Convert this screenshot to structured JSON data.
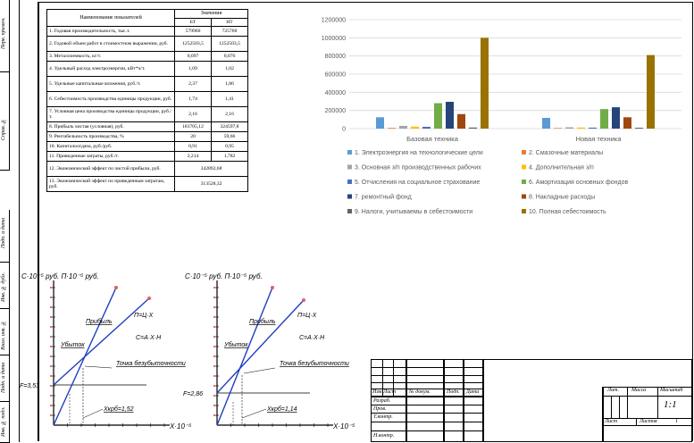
{
  "sidebar": {
    "labels": [
      "Перв. примен.",
      "Справ. №",
      "Подп. и дата",
      "Инв. № дубл.",
      "Взам. инв. №",
      "Подп. и дата",
      "Инв. № подл."
    ]
  },
  "table": {
    "header_name": "Наименование показателей",
    "header_values": "Значения",
    "col_bt": "БТ",
    "col_nt": "НТ",
    "rows": [
      {
        "name": "1. Годовая производительность, тыс.т.",
        "bt": "579960",
        "nt": "725760"
      },
      {
        "name": "2. Годовой объем работ в стоимостном выражении, руб.",
        "bt": "1252503,5",
        "nt": "1252503,5"
      },
      {
        "name": "3. Металлоемкость, кг/т.",
        "bt": "0,097",
        "nt": "0,076"
      },
      {
        "name": "4. Удельный расход электроэнергии, кВт*ч/т.",
        "bt": "1,09",
        "nt": "1,02"
      },
      {
        "name": "5. Удельные капитальные вложения, руб./т.",
        "bt": "2,37",
        "nt": "1,86"
      },
      {
        "name": "6. Себестоимость производства единицы продукции, руб.",
        "bt": "1,74",
        "nt": "1,41"
      },
      {
        "name": "7. Условная цена производства единицы продукции, руб./т.",
        "bt": "2,16",
        "nt": "2,16"
      },
      {
        "name": "8. Прибыль чистая (условная), руб.",
        "bt": "181705,12",
        "nt": "324597,8"
      },
      {
        "name": "9. Рентабельность производства, %",
        "bt": "20",
        "nt": "59,66"
      },
      {
        "name": "10. Капиталоотдача, руб./руб.",
        "bt": "0,91",
        "nt": "0,95"
      },
      {
        "name": "11. Приведенные затраты, руб./т.",
        "bt": "2,214",
        "nt": "1,782"
      }
    ],
    "merged_rows": [
      {
        "name": "12. Экономический эффект по чистой прибыли, руб.",
        "value": "342892,68"
      },
      {
        "name": "13. Экономический эффект по приведенным затратам, руб.",
        "value": "313528,32"
      }
    ]
  },
  "chart_data": {
    "type": "bar",
    "categories": [
      "Базовая техника",
      "Новая техника"
    ],
    "ylim": [
      0,
      1200000
    ],
    "yticks": [
      "0",
      "200000",
      "400000",
      "600000",
      "800000",
      "1000000",
      "1200000"
    ],
    "legend_position": "bottom",
    "series": [
      {
        "name": "1. Электроэнергия на технологические цели",
        "color": "#5b9bd5",
        "values": [
          125000,
          118000
        ]
      },
      {
        "name": "2. Смазочные материалы",
        "color": "#ed7d31",
        "values": [
          8000,
          7000
        ]
      },
      {
        "name": "3. Основная з/п производственных рабочих",
        "color": "#a5a5a5",
        "values": [
          30000,
          15000
        ]
      },
      {
        "name": "4. Дополнительная з/п",
        "color": "#ffc000",
        "values": [
          22000,
          12000
        ]
      },
      {
        "name": "5. Отчисления на социальное страхование",
        "color": "#4472c4",
        "values": [
          20000,
          11000
        ]
      },
      {
        "name": "6. Амортизация основных фондов",
        "color": "#70ad47",
        "values": [
          280000,
          215000
        ]
      },
      {
        "name": "7. ремонтный фонд",
        "color": "#264478",
        "values": [
          295000,
          235000
        ]
      },
      {
        "name": "8. Накладные расходы",
        "color": "#9e480e",
        "values": [
          160000,
          125000
        ]
      },
      {
        "name": "9. Налоги, учитываемы в себестоимости",
        "color": "#636363",
        "values": [
          12000,
          10000
        ]
      },
      {
        "name": "10. Полная себестоимость",
        "color": "#997300",
        "values": [
          1000000,
          810000
        ]
      }
    ]
  },
  "graphs": [
    {
      "ylabel": "С·10⁻⁵ руб. П·10⁻⁵ руб.",
      "profit": "Прибыль",
      "pi": "П=Ц·Х",
      "cost": "С=А·Х·Н",
      "loss": "Убыток",
      "point": "Точка безубыточности",
      "fixed": "F=3,53",
      "xcrit": "Хкрб=1,52",
      "xlabel": "Х·10⁻⁵ т."
    },
    {
      "ylabel": "С·10⁻⁵ руб. П·10⁻⁵ руб.",
      "profit": "Прибыль",
      "pi": "П=Ц·Х",
      "cost": "С=А·Х·Н",
      "loss": "Убыток",
      "point": "Точка безубыточности",
      "fixed": "F=2,86",
      "xcrit": "Хкрб=1,14",
      "xlabel": "Х·10⁻⁵ т."
    }
  ],
  "stamp": {
    "izm": "Изм",
    "list": "Лист",
    "doc": "№ докум.",
    "podp": "Подп.",
    "data": "Дата",
    "razrab": "Разраб.",
    "prov": "Пров.",
    "tkontr": "Т.контр.",
    "nkontr": "Н.контр.",
    "lit": "Лит.",
    "massa": "Масса",
    "masshtab": "Масштаб",
    "scale_value": "1:1",
    "sheet": "Лист",
    "sheets": "Листов",
    "sheets_value": "1"
  }
}
